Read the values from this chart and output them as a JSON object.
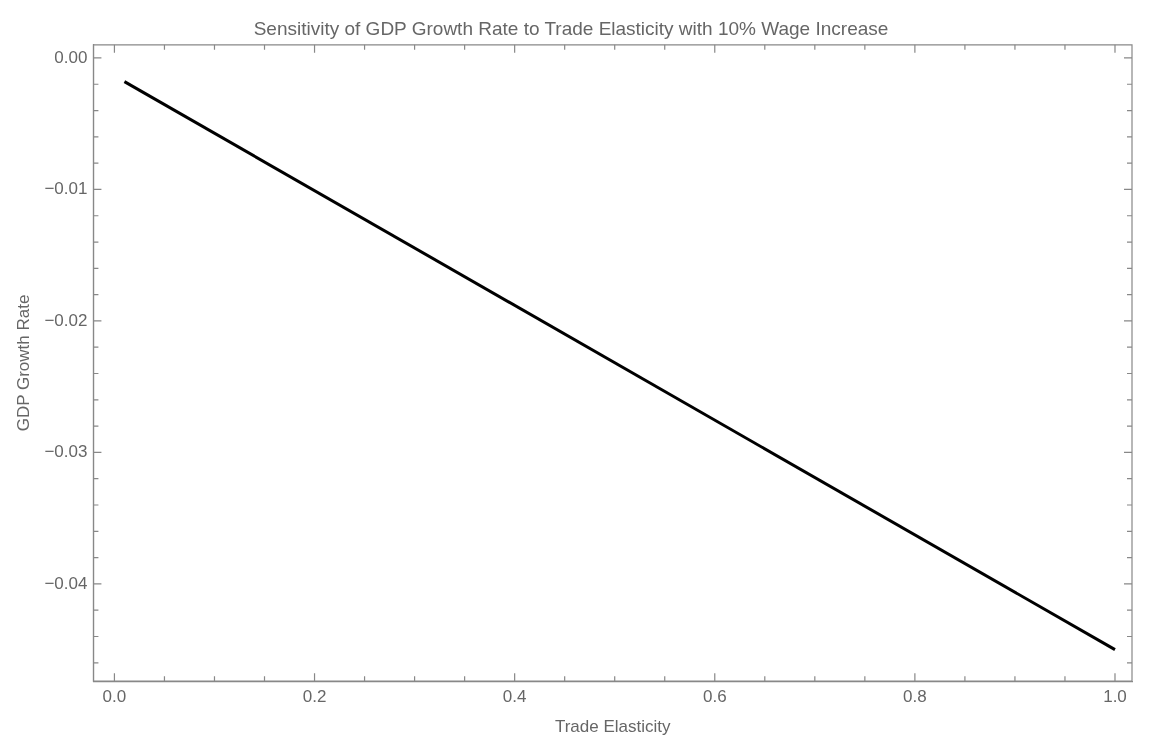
{
  "chart_data": {
    "type": "line",
    "title": "Sensitivity of GDP Growth Rate to Trade Elasticity with 10% Wage Increase",
    "xlabel": "Trade Elasticity",
    "ylabel": "GDP Growth Rate",
    "series": [
      {
        "color": "#000000",
        "x": [
          0.01,
          1.0
        ],
        "values": [
          -0.0018,
          -0.045
        ]
      }
    ],
    "xlim": [
      -0.021,
      1.017
    ],
    "ylim": [
      -0.0474,
      0.001
    ],
    "xticks": [
      {
        "value": 0,
        "label": "0.0"
      },
      {
        "value": 0.05,
        "label": null
      },
      {
        "value": 0.1,
        "label": null
      },
      {
        "value": 0.15,
        "label": null
      },
      0.2,
      {
        "value": 0.25,
        "label": null
      },
      {
        "value": 0.3,
        "label": null
      },
      {
        "value": 0.35,
        "label": null
      },
      0.4,
      {
        "value": 0.45,
        "label": null
      },
      {
        "value": 0.5,
        "label": null
      },
      {
        "value": 0.55,
        "label": null
      },
      0.6,
      {
        "value": 0.65,
        "label": null
      },
      {
        "value": 0.7,
        "label": null
      },
      {
        "value": 0.75,
        "label": null
      },
      0.8,
      {
        "value": 0.85,
        "label": null
      },
      {
        "value": 0.9,
        "label": null
      },
      {
        "value": 0.95,
        "label": null
      },
      {
        "value": 1,
        "label": "1.0"
      }
    ],
    "yticks": [
      {
        "value": 0,
        "label": "0.00"
      },
      {
        "value": -0.002,
        "label": null
      },
      {
        "value": -0.004,
        "label": null
      },
      {
        "value": -0.006,
        "label": null
      },
      {
        "value": -0.008,
        "label": null
      },
      -0.01,
      {
        "value": -0.012,
        "label": null
      },
      {
        "value": -0.014,
        "label": null
      },
      {
        "value": -0.016,
        "label": null
      },
      {
        "value": -0.018,
        "label": null
      },
      -0.02,
      {
        "value": -0.022,
        "label": null
      },
      {
        "value": -0.024,
        "label": null
      },
      {
        "value": -0.026,
        "label": null
      },
      {
        "value": -0.028,
        "label": null
      },
      -0.03,
      {
        "value": -0.032,
        "label": null
      },
      {
        "value": -0.034,
        "label": null
      },
      {
        "value": -0.036,
        "label": null
      },
      {
        "value": -0.038,
        "label": null
      },
      -0.04,
      {
        "value": -0.042,
        "label": null
      },
      {
        "value": -0.044,
        "label": null
      },
      {
        "value": -0.046,
        "label": null
      }
    ],
    "grid": false,
    "legend": false,
    "marker": "none",
    "line_style": "solid"
  }
}
